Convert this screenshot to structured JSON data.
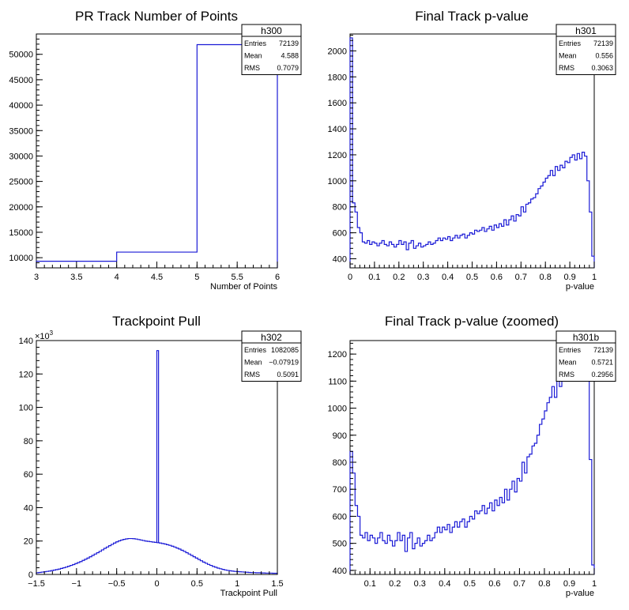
{
  "chart_data": [
    {
      "name": "h300",
      "type": "histogram",
      "title": "PR Track Number of Points",
      "xlabel": "Number of Points",
      "ylabel": "",
      "xlim": [
        3,
        6
      ],
      "ylim": [
        8000,
        54000
      ],
      "xticks": [
        "3",
        "3.5",
        "4",
        "4.5",
        "5",
        "5.5",
        "6"
      ],
      "yticks": [
        "10000",
        "15000",
        "20000",
        "25000",
        "30000",
        "35000",
        "40000",
        "45000",
        "50000"
      ],
      "bins": [
        3,
        4,
        5,
        6
      ],
      "values": [
        9300,
        11100,
        51900
      ],
      "stats": {
        "title": "h300",
        "rows": [
          {
            "label": "Entries",
            "value": "72139"
          },
          {
            "label": "Mean",
            "value": "4.588"
          },
          {
            "label": "RMS",
            "value": "0.7079"
          }
        ]
      }
    },
    {
      "name": "h301",
      "type": "histogram",
      "title": "Final Track p-value",
      "xlabel": "p-value",
      "ylabel": "",
      "xlim": [
        0,
        1
      ],
      "ylim": [
        330,
        2130
      ],
      "xticks": [
        "0",
        "0.1",
        "0.2",
        "0.3",
        "0.4",
        "0.5",
        "0.6",
        "0.7",
        "0.8",
        "0.9",
        "1"
      ],
      "yticks": [
        "400",
        "600",
        "800",
        "1000",
        "1200",
        "1400",
        "1600",
        "1800",
        "2000"
      ],
      "bin_count": 100,
      "values": [
        2100,
        830,
        760,
        640,
        600,
        530,
        520,
        540,
        510,
        530,
        520,
        500,
        520,
        540,
        510,
        500,
        530,
        510,
        490,
        510,
        540,
        510,
        530,
        470,
        520,
        540,
        480,
        500,
        520,
        490,
        500,
        510,
        530,
        510,
        520,
        540,
        560,
        540,
        560,
        550,
        570,
        540,
        560,
        580,
        560,
        580,
        590,
        560,
        580,
        600,
        590,
        620,
        610,
        620,
        640,
        610,
        630,
        650,
        620,
        660,
        640,
        670,
        650,
        700,
        660,
        700,
        730,
        690,
        740,
        730,
        800,
        760,
        820,
        830,
        860,
        870,
        900,
        940,
        960,
        990,
        1020,
        1040,
        1080,
        1040,
        1110,
        1080,
        1120,
        1100,
        1150,
        1140,
        1180,
        1200,
        1160,
        1210,
        1170,
        1220,
        1190,
        1000,
        760,
        420
      ]
    },
    {
      "name": "h302",
      "type": "histogram",
      "title": "Trackpoint Pull",
      "xlabel": "Trackpoint Pull",
      "ylabel": "",
      "y_multiplier": "×10",
      "y_multiplier_exp": "3",
      "xlim": [
        -1.5,
        1.5
      ],
      "ylim": [
        0,
        140
      ],
      "xticks": [
        "−1.5",
        "−1",
        "−0.5",
        "0",
        "0.5",
        "1",
        "1.5"
      ],
      "yticks": [
        "0",
        "20",
        "40",
        "60",
        "80",
        "100",
        "120",
        "140"
      ],
      "bin_count": 100,
      "spike": {
        "x": 0.0,
        "value": 134
      },
      "values": [
        1.0,
        1.2,
        1.4,
        1.6,
        1.8,
        2.0,
        2.3,
        2.6,
        2.9,
        3.2,
        3.6,
        4.0,
        4.4,
        4.9,
        5.4,
        5.9,
        6.5,
        7.1,
        7.7,
        8.4,
        9.1,
        9.8,
        10.6,
        11.4,
        12.2,
        13.0,
        13.8,
        14.7,
        15.6,
        16.4,
        17.2,
        18.0,
        18.8,
        19.5,
        20.1,
        20.6,
        21.0,
        21.3,
        21.5,
        21.5,
        21.4,
        21.2,
        20.9,
        20.6,
        20.3,
        20.0,
        19.8,
        19.6,
        19.4,
        19.2,
        19.0,
        18.8,
        18.5,
        18.2,
        17.8,
        17.4,
        16.9,
        16.4,
        15.8,
        15.2,
        14.5,
        13.8,
        13.0,
        12.2,
        11.4,
        10.6,
        9.8,
        9.0,
        8.2,
        7.4,
        6.7,
        6.0,
        5.4,
        4.8,
        4.3,
        3.8,
        3.4,
        3.0,
        2.7,
        2.4,
        2.2,
        2.0,
        1.8,
        1.7,
        1.6,
        1.5,
        1.4,
        1.3,
        1.2,
        1.1,
        1.1,
        1.0,
        1.0,
        0.9,
        0.9,
        0.8,
        0.8,
        0.8,
        0.7,
        0.7
      ],
      "stats": {
        "title": "h302",
        "rows": [
          {
            "label": "Entries",
            "value": "1082085"
          },
          {
            "label": "Mean",
            "value": "−0.07919"
          },
          {
            "label": "RMS",
            "value": "0.5091"
          }
        ]
      }
    },
    {
      "name": "h301b",
      "type": "histogram",
      "title": "Final Track p-value (zoomed)",
      "xlabel": "p-value",
      "ylabel": "",
      "xlim": [
        0.02,
        1.0
      ],
      "ylim": [
        385,
        1250
      ],
      "xticks": [
        "0.1",
        "0.2",
        "0.3",
        "0.4",
        "0.5",
        "0.6",
        "0.7",
        "0.8",
        "0.9",
        "1"
      ],
      "yticks": [
        "400",
        "500",
        "600",
        "700",
        "800",
        "900",
        "1000",
        "1100",
        "1200"
      ],
      "bin_count": 98,
      "values": [
        840,
        760,
        640,
        600,
        530,
        520,
        540,
        510,
        530,
        520,
        500,
        520,
        540,
        510,
        500,
        530,
        510,
        490,
        510,
        540,
        510,
        530,
        470,
        520,
        540,
        480,
        500,
        520,
        490,
        500,
        510,
        530,
        510,
        520,
        540,
        560,
        540,
        560,
        550,
        570,
        540,
        560,
        580,
        560,
        580,
        590,
        560,
        580,
        600,
        590,
        620,
        610,
        620,
        640,
        610,
        630,
        650,
        620,
        660,
        640,
        670,
        650,
        700,
        660,
        700,
        730,
        690,
        740,
        730,
        800,
        760,
        820,
        830,
        860,
        870,
        900,
        940,
        960,
        990,
        1020,
        1040,
        1080,
        1040,
        1110,
        1080,
        1120,
        1100,
        1150,
        1140,
        1180,
        1200,
        1160,
        1210,
        1170,
        1220,
        1190,
        810,
        420
      ],
      "stats": {
        "title": "h301b",
        "rows": [
          {
            "label": "Entries",
            "value": "72139"
          },
          {
            "label": "Mean",
            "value": "0.5721"
          },
          {
            "label": "RMS",
            "value": "0.2956"
          }
        ]
      }
    }
  ],
  "h301_stats": {
    "title": "h301",
    "rows": [
      {
        "label": "Entries",
        "value": "72139"
      },
      {
        "label": "Mean",
        "value": "0.556"
      },
      {
        "label": "RMS",
        "value": "0.3063"
      }
    ]
  }
}
